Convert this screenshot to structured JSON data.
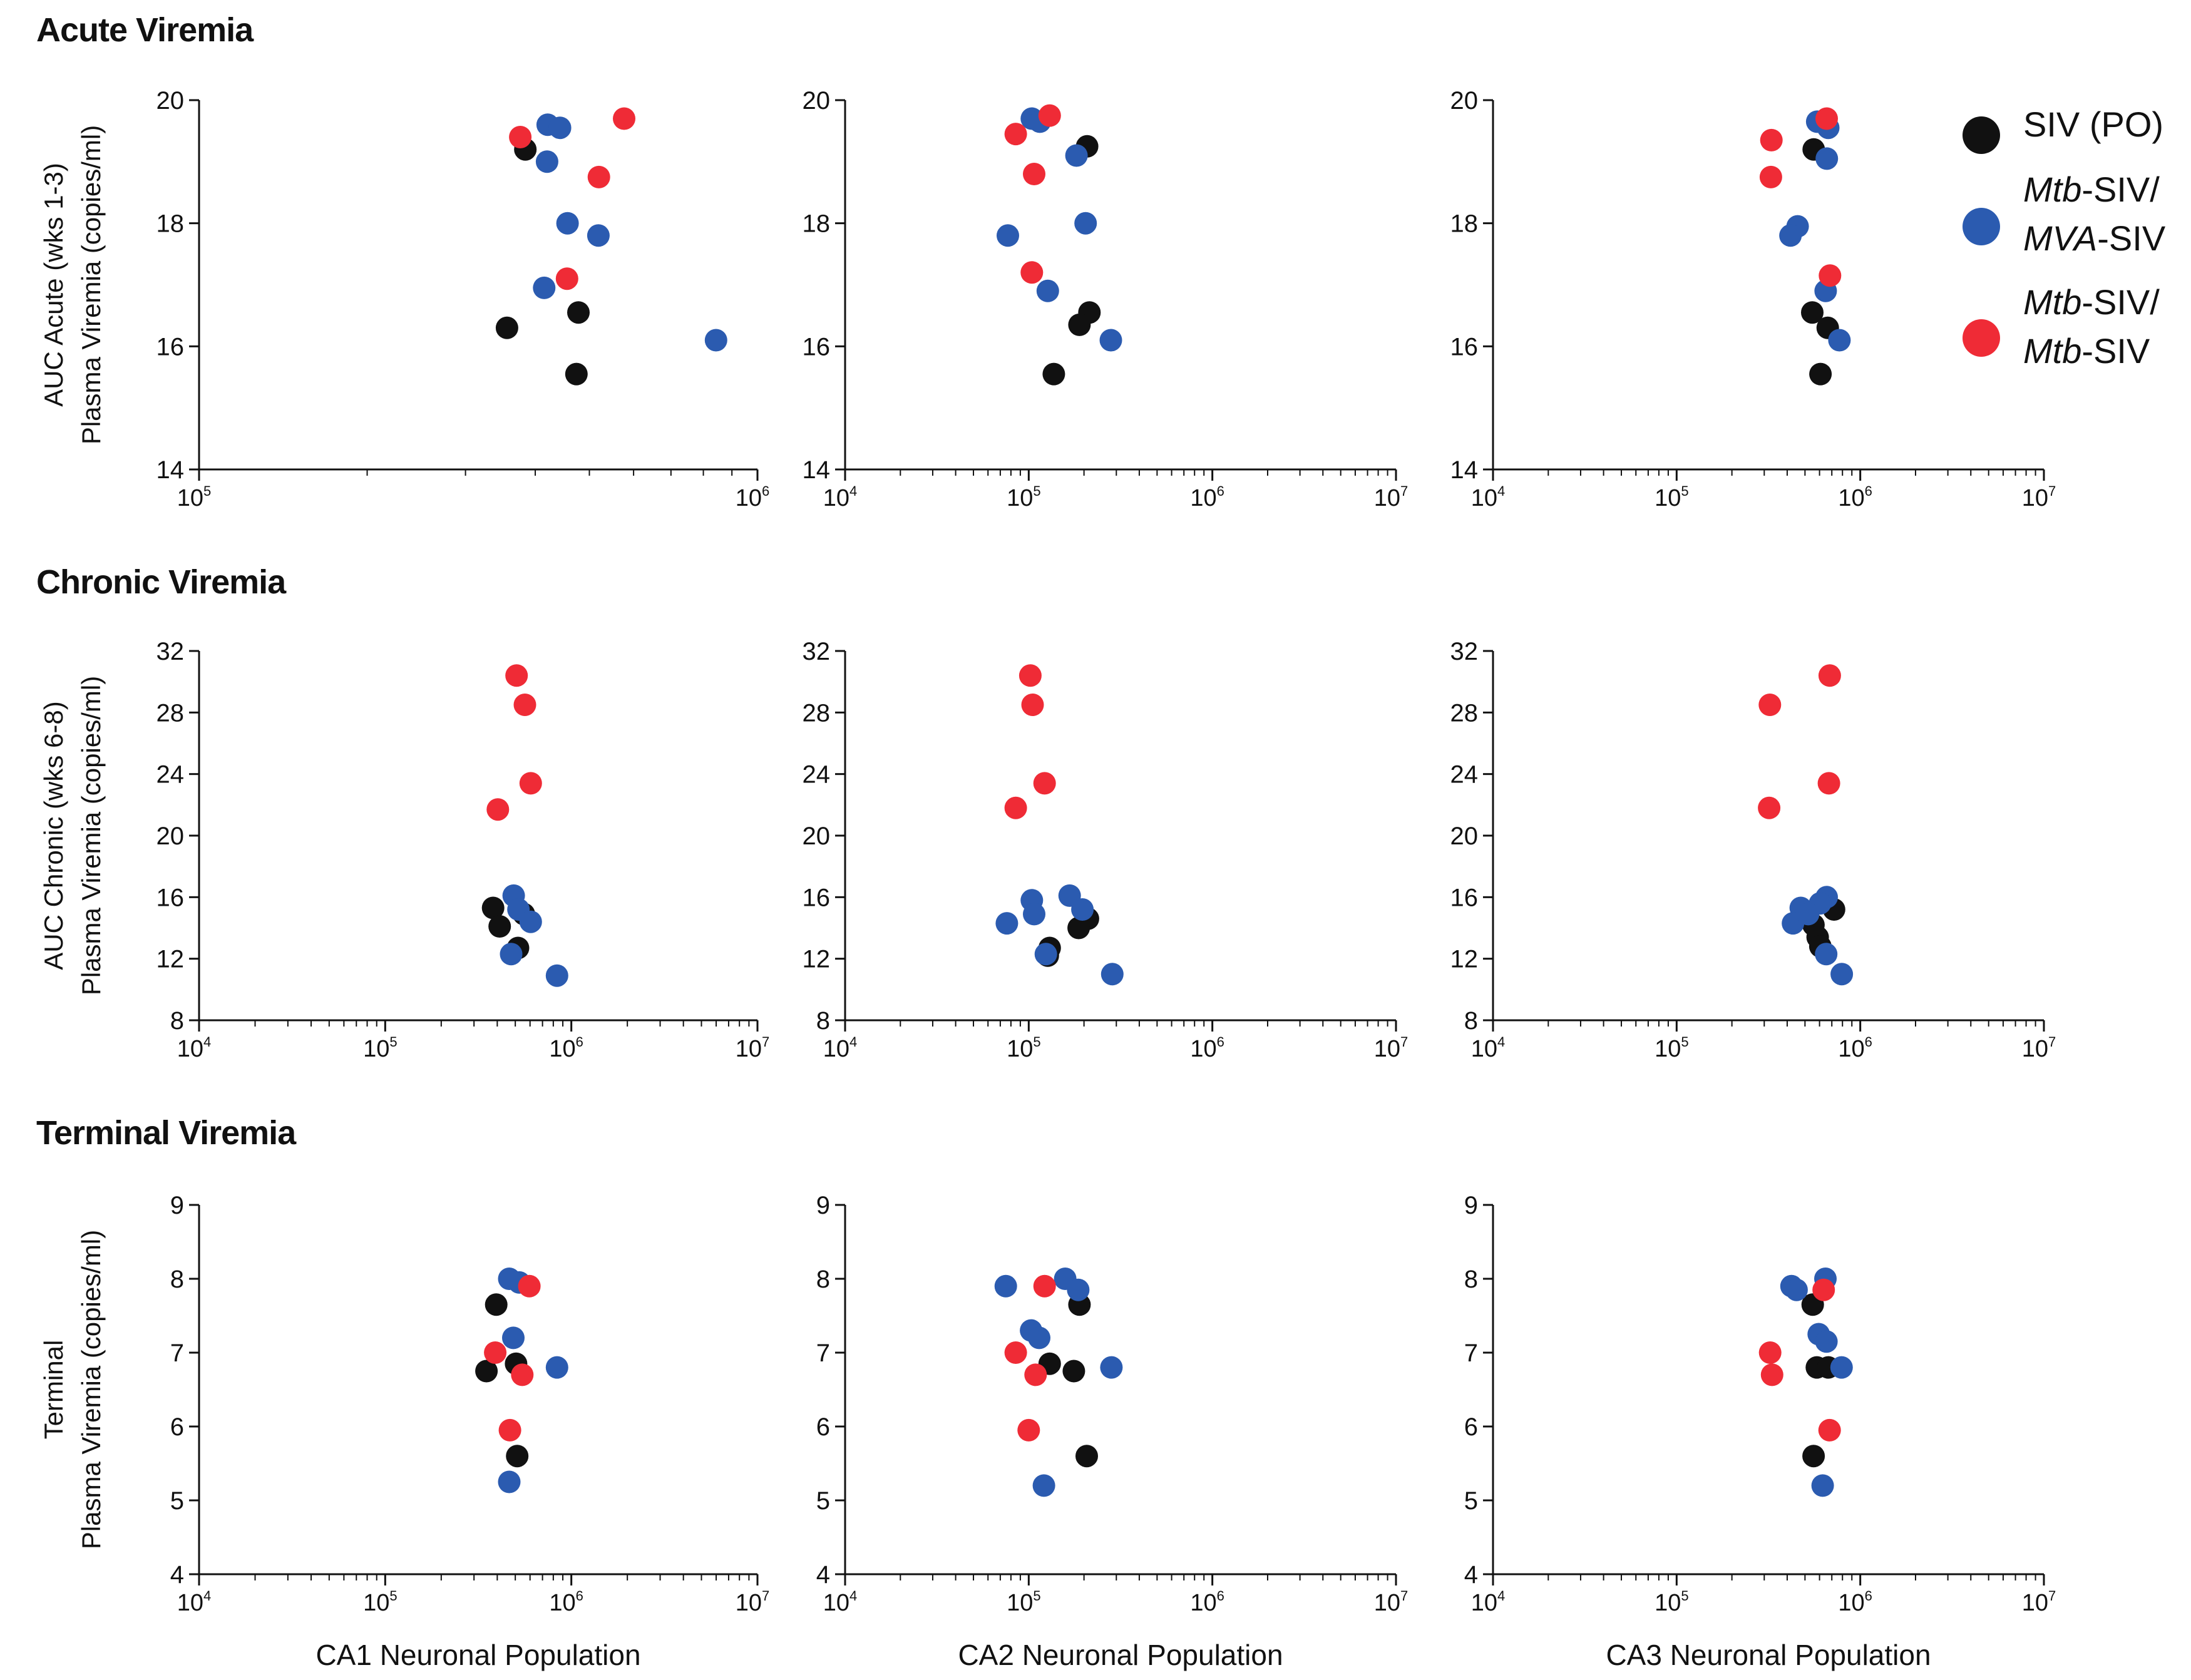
{
  "section_titles": [
    "Acute Viremia",
    "Chronic Viremia",
    "Terminal Viremia"
  ],
  "legend": [
    {
      "key": "siv_po",
      "lines": [
        [
          {
            "t": "SIV (PO)",
            "i": false
          }
        ]
      ]
    },
    {
      "key": "mtb_mva",
      "lines": [
        [
          {
            "t": "Mtb",
            "i": true
          },
          {
            "t": "-SIV/",
            "i": false
          }
        ],
        [
          {
            "t": "MVA",
            "i": true
          },
          {
            "t": "-SIV",
            "i": false
          }
        ]
      ]
    },
    {
      "key": "mtb_mtb",
      "lines": [
        [
          {
            "t": "Mtb",
            "i": true
          },
          {
            "t": "-SIV/",
            "i": false
          }
        ],
        [
          {
            "t": "Mtb",
            "i": true
          },
          {
            "t": "-SIV",
            "i": false
          }
        ]
      ]
    }
  ],
  "colors": {
    "siv_po": "#111111",
    "mtb_mva": "#2b5bb0",
    "mtb_mtb": "#ef2b36"
  },
  "chart_data": [
    {
      "type": "scatter",
      "row": 0,
      "col": 0,
      "title": "Acute Viremia",
      "ylabel": [
        "AUC Acute (wks 1-3)",
        "Plasma Viremia (copies/ml)"
      ],
      "xlabel": "",
      "xscale": "log",
      "xlim": [
        100000,
        1000000
      ],
      "ylim": [
        14,
        20
      ],
      "yticks": [
        14,
        16,
        18,
        20
      ],
      "xtick_exponents": [
        5,
        6
      ],
      "series": [
        {
          "name": "SIV (PO)",
          "key": "siv_po",
          "points": [
            [
              356000,
              16.3
            ],
            [
              384000,
              19.2
            ],
            [
              478000,
              16.55
            ],
            [
              474000,
              15.55
            ]
          ]
        },
        {
          "name": "Mtb-SIV/MVA-SIV",
          "key": "mtb_mva",
          "points": [
            [
              421000,
              19.6
            ],
            [
              443000,
              19.55
            ],
            [
              420000,
              19.0
            ],
            [
              457000,
              18.0
            ],
            [
              519000,
              17.8
            ],
            [
              415000,
              16.95
            ],
            [
              843000,
              16.1
            ]
          ]
        },
        {
          "name": "Mtb-SIV/Mtb-SIV",
          "key": "mtb_mtb",
          "points": [
            [
              376000,
              19.4
            ],
            [
              577000,
              19.7
            ],
            [
              520000,
              18.75
            ],
            [
              456000,
              17.1
            ]
          ]
        }
      ]
    },
    {
      "type": "scatter",
      "row": 0,
      "col": 1,
      "title": "Acute Viremia",
      "ylabel": [
        "",
        ""
      ],
      "xlabel": "",
      "xscale": "log",
      "xlim": [
        10000,
        10000000
      ],
      "ylim": [
        14,
        20
      ],
      "yticks": [
        14,
        16,
        18,
        20
      ],
      "xtick_exponents": [
        4,
        5,
        6,
        7
      ],
      "series": [
        {
          "name": "SIV (PO)",
          "key": "siv_po",
          "points": [
            [
              208000,
              19.25
            ],
            [
              214000,
              16.55
            ],
            [
              189000,
              16.35
            ],
            [
              137000,
              15.55
            ]
          ]
        },
        {
          "name": "Mtb-SIV/MVA-SIV",
          "key": "mtb_mva",
          "points": [
            [
              104000,
              19.7
            ],
            [
              115000,
              19.65
            ],
            [
              182000,
              19.1
            ],
            [
              204000,
              18.0
            ],
            [
              77000,
              17.8
            ],
            [
              127000,
              16.9
            ],
            [
              280000,
              16.1
            ]
          ]
        },
        {
          "name": "Mtb-SIV/Mtb-SIV",
          "key": "mtb_mtb",
          "points": [
            [
              130000,
              19.75
            ],
            [
              85000,
              19.45
            ],
            [
              107000,
              18.8
            ],
            [
              104000,
              17.2
            ]
          ]
        }
      ]
    },
    {
      "type": "scatter",
      "row": 0,
      "col": 2,
      "title": "Acute Viremia",
      "ylabel": [
        "",
        ""
      ],
      "xlabel": "",
      "xscale": "log",
      "xlim": [
        10000,
        10000000
      ],
      "ylim": [
        14,
        20
      ],
      "yticks": [
        14,
        16,
        18,
        20
      ],
      "xtick_exponents": [
        4,
        5,
        6,
        7
      ],
      "series": [
        {
          "name": "SIV (PO)",
          "key": "siv_po",
          "points": [
            [
              558000,
              19.2
            ],
            [
              548000,
              16.55
            ],
            [
              665000,
              16.3
            ],
            [
              607000,
              15.55
            ]
          ]
        },
        {
          "name": "Mtb-SIV/MVA-SIV",
          "key": "mtb_mva",
          "points": [
            [
              583000,
              19.65
            ],
            [
              669000,
              19.55
            ],
            [
              657000,
              19.05
            ],
            [
              456000,
              17.95
            ],
            [
              417000,
              17.8
            ],
            [
              648000,
              16.9
            ],
            [
              770000,
              16.1
            ]
          ]
        },
        {
          "name": "Mtb-SIV/Mtb-SIV",
          "key": "mtb_mtb",
          "points": [
            [
              656000,
              19.7
            ],
            [
              328000,
              19.35
            ],
            [
              326000,
              18.75
            ],
            [
              684000,
              17.15
            ]
          ]
        }
      ]
    },
    {
      "type": "scatter",
      "row": 1,
      "col": 0,
      "title": "Chronic Viremia",
      "ylabel": [
        "AUC Chronic (wks 6-8)",
        "Plasma Viremia (copies/ml)"
      ],
      "xlabel": "",
      "xscale": "log",
      "xlim": [
        10000,
        10000000
      ],
      "ylim": [
        8,
        32
      ],
      "yticks": [
        8,
        12,
        16,
        20,
        24,
        28,
        32
      ],
      "xtick_exponents": [
        4,
        5,
        6,
        7
      ],
      "series": [
        {
          "name": "SIV (PO)",
          "key": "siv_po",
          "points": [
            [
              380000,
              15.3
            ],
            [
              412000,
              14.1
            ],
            [
              556000,
              14.9
            ],
            [
              517000,
              12.7
            ]
          ]
        },
        {
          "name": "Mtb-SIV/MVA-SIV",
          "key": "mtb_mva",
          "points": [
            [
              490000,
              16.1
            ],
            [
              520000,
              15.2
            ],
            [
              605000,
              14.4
            ],
            [
              475000,
              12.3
            ],
            [
              838000,
              10.9
            ]
          ]
        },
        {
          "name": "Mtb-SIV/Mtb-SIV",
          "key": "mtb_mtb",
          "points": [
            [
              508000,
              30.4
            ],
            [
              563000,
              28.5
            ],
            [
              605000,
              23.4
            ],
            [
              403000,
              21.7
            ]
          ]
        }
      ]
    },
    {
      "type": "scatter",
      "row": 1,
      "col": 1,
      "title": "Chronic Viremia",
      "ylabel": [
        "",
        ""
      ],
      "xlabel": "",
      "xscale": "log",
      "xlim": [
        10000,
        10000000
      ],
      "ylim": [
        8,
        32
      ],
      "yticks": [
        8,
        12,
        16,
        20,
        24,
        28,
        32
      ],
      "xtick_exponents": [
        4,
        5,
        6,
        7
      ],
      "series": [
        {
          "name": "SIV (PO)",
          "key": "siv_po",
          "points": [
            [
              210000,
              14.6
            ],
            [
              187000,
              14.0
            ],
            [
              130000,
              12.7
            ],
            [
              127000,
              12.2
            ]
          ]
        },
        {
          "name": "Mtb-SIV/MVA-SIV",
          "key": "mtb_mva",
          "points": [
            [
              104000,
              15.8
            ],
            [
              107000,
              14.9
            ],
            [
              167000,
              16.1
            ],
            [
              196000,
              15.2
            ],
            [
              76000,
              14.3
            ],
            [
              124000,
              12.3
            ],
            [
              285000,
              11.0
            ]
          ]
        },
        {
          "name": "Mtb-SIV/Mtb-SIV",
          "key": "mtb_mtb",
          "points": [
            [
              102000,
              30.4
            ],
            [
              105000,
              28.5
            ],
            [
              122000,
              23.4
            ],
            [
              85000,
              21.8
            ]
          ]
        }
      ]
    },
    {
      "type": "scatter",
      "row": 1,
      "col": 2,
      "title": "Chronic Viremia",
      "ylabel": [
        "",
        ""
      ],
      "xlabel": "",
      "xscale": "log",
      "xlim": [
        10000,
        10000000
      ],
      "ylim": [
        8,
        32
      ],
      "yticks": [
        8,
        12,
        16,
        20,
        24,
        28,
        32
      ],
      "xtick_exponents": [
        4,
        5,
        6,
        7
      ],
      "series": [
        {
          "name": "SIV (PO)",
          "key": "siv_po",
          "points": [
            [
              720000,
              15.2
            ],
            [
              556000,
              14.2
            ],
            [
              586000,
              13.4
            ],
            [
              606000,
              12.8
            ]
          ]
        },
        {
          "name": "Mtb-SIV/MVA-SIV",
          "key": "mtb_mva",
          "points": [
            [
              656000,
              16.0
            ],
            [
              604000,
              15.6
            ],
            [
              474000,
              15.3
            ],
            [
              430000,
              14.3
            ],
            [
              520000,
              14.9
            ],
            [
              652000,
              12.3
            ],
            [
              793000,
              11.0
            ]
          ]
        },
        {
          "name": "Mtb-SIV/Mtb-SIV",
          "key": "mtb_mtb",
          "points": [
            [
              682000,
              30.4
            ],
            [
              322000,
              28.5
            ],
            [
              675000,
              23.4
            ],
            [
              319000,
              21.8
            ]
          ]
        }
      ]
    },
    {
      "type": "scatter",
      "row": 2,
      "col": 0,
      "title": "Terminal Viremia",
      "ylabel": [
        "Terminal",
        "Plasma Viremia (copies/ml)"
      ],
      "xlabel": "CA1 Neuronal Population",
      "xscale": "log",
      "xlim": [
        10000,
        10000000
      ],
      "ylim": [
        4,
        9
      ],
      "yticks": [
        4,
        5,
        6,
        7,
        8,
        9
      ],
      "xtick_exponents": [
        4,
        5,
        6,
        7
      ],
      "series": [
        {
          "name": "SIV (PO)",
          "key": "siv_po",
          "points": [
            [
              395000,
              7.65
            ],
            [
              350000,
              6.75
            ],
            [
              505000,
              6.85
            ],
            [
              512000,
              5.6
            ]
          ]
        },
        {
          "name": "Mtb-SIV/MVA-SIV",
          "key": "mtb_mva",
          "points": [
            [
              464000,
              8.0
            ],
            [
              525000,
              7.95
            ],
            [
              488000,
              7.2
            ],
            [
              838000,
              6.8
            ],
            [
              464000,
              5.25
            ]
          ]
        },
        {
          "name": "Mtb-SIV/Mtb-SIV",
          "key": "mtb_mtb",
          "points": [
            [
              595000,
              7.9
            ],
            [
              390000,
              7.0
            ],
            [
              545000,
              6.7
            ],
            [
              468000,
              5.95
            ]
          ]
        }
      ]
    },
    {
      "type": "scatter",
      "row": 2,
      "col": 1,
      "title": "Terminal Viremia",
      "ylabel": [
        "",
        ""
      ],
      "xlabel": "CA2 Neuronal Population",
      "xscale": "log",
      "xlim": [
        10000,
        10000000
      ],
      "ylim": [
        4,
        9
      ],
      "yticks": [
        4,
        5,
        6,
        7,
        8,
        9
      ],
      "xtick_exponents": [
        4,
        5,
        6,
        7
      ],
      "series": [
        {
          "name": "SIV (PO)",
          "key": "siv_po",
          "points": [
            [
              189000,
              7.65
            ],
            [
              130000,
              6.85
            ],
            [
              176000,
              6.75
            ],
            [
              207000,
              5.6
            ]
          ]
        },
        {
          "name": "Mtb-SIV/MVA-SIV",
          "key": "mtb_mva",
          "points": [
            [
              75000,
              7.9
            ],
            [
              158000,
              8.0
            ],
            [
              186000,
              7.85
            ],
            [
              103000,
              7.3
            ],
            [
              114000,
              7.2
            ],
            [
              282000,
              6.8
            ],
            [
              121000,
              5.2
            ]
          ]
        },
        {
          "name": "Mtb-SIV/Mtb-SIV",
          "key": "mtb_mtb",
          "points": [
            [
              122000,
              7.9
            ],
            [
              85000,
              7.0
            ],
            [
              109000,
              6.7
            ],
            [
              100000,
              5.95
            ]
          ]
        }
      ]
    },
    {
      "type": "scatter",
      "row": 2,
      "col": 2,
      "title": "Terminal Viremia",
      "ylabel": [
        "",
        ""
      ],
      "xlabel": "CA3 Neuronal Population",
      "xscale": "log",
      "xlim": [
        10000,
        10000000
      ],
      "ylim": [
        4,
        9
      ],
      "yticks": [
        4,
        5,
        6,
        7,
        8,
        9
      ],
      "xtick_exponents": [
        4,
        5,
        6,
        7
      ],
      "series": [
        {
          "name": "SIV (PO)",
          "key": "siv_po",
          "points": [
            [
              551000,
              7.65
            ],
            [
              580000,
              6.8
            ],
            [
              670000,
              6.8
            ],
            [
              557000,
              5.6
            ]
          ]
        },
        {
          "name": "Mtb-SIV/MVA-SIV",
          "key": "mtb_mva",
          "points": [
            [
              422000,
              7.9
            ],
            [
              450000,
              7.85
            ],
            [
              646000,
              8.0
            ],
            [
              594000,
              7.25
            ],
            [
              654000,
              7.15
            ],
            [
              791000,
              6.8
            ],
            [
              624000,
              5.2
            ]
          ]
        },
        {
          "name": "Mtb-SIV/Mtb-SIV",
          "key": "mtb_mtb",
          "points": [
            [
              632000,
              7.85
            ],
            [
              323000,
              7.0
            ],
            [
              331000,
              6.7
            ],
            [
              681000,
              5.95
            ]
          ]
        }
      ]
    }
  ]
}
